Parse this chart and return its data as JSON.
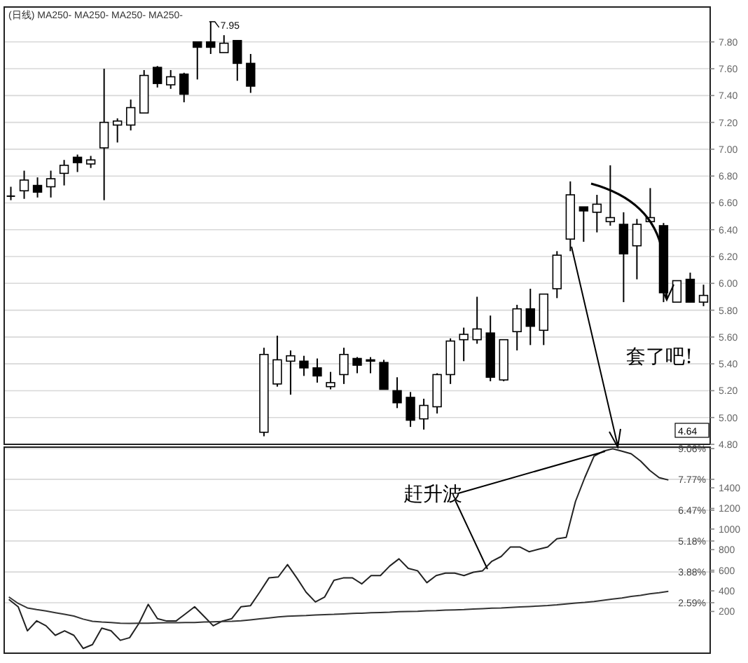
{
  "chart_data": [
    {
      "type": "candlestick",
      "title": "(日线) MA250- MA250- MA250- MA250-",
      "categories": [
        null,
        null,
        null,
        null,
        null,
        null,
        null,
        null,
        null,
        null,
        null,
        null,
        null,
        null,
        null,
        null,
        null,
        null,
        null,
        null,
        null,
        null,
        null,
        null,
        null,
        null,
        null,
        null,
        null,
        null,
        null,
        null,
        null,
        null,
        null,
        null,
        null,
        null,
        null,
        null,
        null,
        null,
        null,
        null,
        null,
        null,
        null,
        null,
        null,
        null,
        null,
        null,
        null
      ],
      "ohlc": [
        [
          6.65,
          6.72,
          6.62,
          6.65
        ],
        [
          6.69,
          6.84,
          6.63,
          6.77
        ],
        [
          6.73,
          6.79,
          6.64,
          6.68
        ],
        [
          6.72,
          6.84,
          6.64,
          6.78
        ],
        [
          6.82,
          6.92,
          6.73,
          6.88
        ],
        [
          6.94,
          6.96,
          6.83,
          6.9
        ],
        [
          6.89,
          6.95,
          6.86,
          6.92
        ],
        [
          7.01,
          7.6,
          6.62,
          7.2
        ],
        [
          7.18,
          7.23,
          7.05,
          7.21
        ],
        [
          7.18,
          7.37,
          7.14,
          7.31
        ],
        [
          7.27,
          7.59,
          7.27,
          7.55
        ],
        [
          7.61,
          7.62,
          7.46,
          7.49
        ],
        [
          7.48,
          7.59,
          7.45,
          7.54
        ],
        [
          7.56,
          7.57,
          7.35,
          7.41
        ],
        [
          7.8,
          7.8,
          7.52,
          7.76
        ],
        [
          7.8,
          7.95,
          7.71,
          7.76
        ],
        [
          7.72,
          7.85,
          7.72,
          7.79
        ],
        [
          7.81,
          7.81,
          7.51,
          7.64
        ],
        [
          7.64,
          7.71,
          7.42,
          7.47
        ],
        [
          4.89,
          5.52,
          4.86,
          5.47
        ],
        [
          5.25,
          5.61,
          5.23,
          5.43
        ],
        [
          5.42,
          5.5,
          5.17,
          5.46
        ],
        [
          5.42,
          5.46,
          5.31,
          5.37
        ],
        [
          5.37,
          5.44,
          5.26,
          5.31
        ],
        [
          5.23,
          5.34,
          5.21,
          5.26
        ],
        [
          5.32,
          5.52,
          5.25,
          5.47
        ],
        [
          5.44,
          5.45,
          5.33,
          5.39
        ],
        [
          5.43,
          5.45,
          5.33,
          5.42
        ],
        [
          5.41,
          5.43,
          5.21,
          5.21
        ],
        [
          5.2,
          5.3,
          5.07,
          5.11
        ],
        [
          5.15,
          5.19,
          4.93,
          4.98
        ],
        [
          4.99,
          5.14,
          4.91,
          5.09
        ],
        [
          5.08,
          5.33,
          5.03,
          5.32
        ],
        [
          5.32,
          5.59,
          5.25,
          5.57
        ],
        [
          5.58,
          5.67,
          5.42,
          5.62
        ],
        [
          5.58,
          5.9,
          5.55,
          5.66
        ],
        [
          5.63,
          5.76,
          5.27,
          5.3
        ],
        [
          5.28,
          5.58,
          5.27,
          5.58
        ],
        [
          5.64,
          5.84,
          5.5,
          5.81
        ],
        [
          5.81,
          5.96,
          5.54,
          5.68
        ],
        [
          5.65,
          5.92,
          5.54,
          5.92
        ],
        [
          5.96,
          6.24,
          5.89,
          6.21
        ],
        [
          6.33,
          6.76,
          6.24,
          6.66
        ],
        [
          6.57,
          6.57,
          6.31,
          6.54
        ],
        [
          6.53,
          6.66,
          6.38,
          6.59
        ],
        [
          6.46,
          6.88,
          6.43,
          6.49
        ],
        [
          6.44,
          6.53,
          5.86,
          6.22
        ],
        [
          6.28,
          6.48,
          6.03,
          6.44
        ],
        [
          6.46,
          6.71,
          6.46,
          6.49
        ],
        [
          6.43,
          6.45,
          5.86,
          5.93
        ],
        [
          5.86,
          6.02,
          5.86,
          6.02
        ],
        [
          6.03,
          6.08,
          5.86,
          5.86
        ],
        [
          5.86,
          5.99,
          5.83,
          5.91
        ]
      ],
      "ylim": [
        4.8,
        8.06
      ],
      "yticks": [
        {
          "value": 4.8,
          "label": "4.80"
        },
        {
          "value": 5.0,
          "label": "5.00"
        },
        {
          "value": 5.2,
          "label": "5.20"
        },
        {
          "value": 5.4,
          "label": "5.40"
        },
        {
          "value": 5.6,
          "label": "5.60"
        },
        {
          "value": 5.8,
          "label": "5.80"
        },
        {
          "value": 6.0,
          "label": "6.00"
        },
        {
          "value": 6.2,
          "label": "6.20"
        },
        {
          "value": 6.4,
          "label": "6.40"
        },
        {
          "value": 6.6,
          "label": "6.60"
        },
        {
          "value": 6.8,
          "label": "6.80"
        },
        {
          "value": 7.0,
          "label": "7.00"
        },
        {
          "value": 7.2,
          "label": "7.20"
        },
        {
          "value": 7.4,
          "label": "7.40"
        },
        {
          "value": 7.6,
          "label": "7.60"
        },
        {
          "value": 7.8,
          "label": "7.80"
        }
      ],
      "grid": "y",
      "annotations": [
        "7.95",
        "套了吧!",
        "4.64"
      ]
    },
    {
      "type": "line",
      "categories": [
        null,
        null,
        null,
        null,
        null,
        null,
        null,
        null,
        null,
        null,
        null,
        null,
        null,
        null,
        null,
        null,
        null,
        null,
        null,
        null,
        null,
        null,
        null,
        null,
        null,
        null,
        null,
        null,
        null,
        null,
        null,
        null,
        null,
        null,
        null,
        null,
        null,
        null,
        null,
        null,
        null,
        null,
        null,
        null,
        null,
        null,
        null,
        null,
        null,
        null,
        null,
        null,
        null,
        null,
        null,
        null,
        null,
        null,
        null,
        null,
        null,
        null,
        null,
        null,
        null,
        null,
        null,
        null,
        null,
        null,
        null,
        null,
        null,
        null,
        null,
        null
      ],
      "series": [
        {
          "color": "#222222",
          "values": [
            2.73,
            2.42,
            1.41,
            1.83,
            1.62,
            1.22,
            1.41,
            1.22,
            0.67,
            0.83,
            1.52,
            1.41,
            1.01,
            1.12,
            1.72,
            2.52,
            1.92,
            1.82,
            1.82,
            2.12,
            2.42,
            2.02,
            1.62,
            1.82,
            1.92,
            2.42,
            2.46,
            3.03,
            3.63,
            3.67,
            4.19,
            3.63,
            3.03,
            2.62,
            2.83,
            3.53,
            3.63,
            3.63,
            3.38,
            3.73,
            3.73,
            4.13,
            4.43,
            4.03,
            3.93,
            3.43,
            3.73,
            3.83,
            3.83,
            3.73,
            3.87,
            3.93,
            4.33,
            4.53,
            4.93,
            4.93,
            4.73,
            4.83,
            4.93,
            5.27,
            5.33,
            6.84,
            7.84,
            8.74,
            8.95,
            9.05,
            8.95,
            8.84,
            8.54,
            8.14,
            7.84,
            7.74,
            null,
            null,
            null,
            null
          ]
        },
        {
          "color": "#333333",
          "values": [
            2.83,
            2.56,
            2.37,
            2.3,
            2.24,
            2.17,
            2.1,
            2.03,
            1.9,
            1.81,
            1.78,
            1.76,
            1.73,
            1.72,
            1.73,
            1.73,
            1.74,
            1.75,
            1.75,
            1.76,
            1.76,
            1.78,
            1.79,
            1.8,
            1.81,
            1.83,
            1.87,
            1.91,
            1.95,
            1.99,
            2.02,
            2.04,
            2.05,
            2.07,
            2.09,
            2.1,
            2.12,
            2.14,
            2.15,
            2.17,
            2.18,
            2.19,
            2.21,
            2.22,
            2.23,
            2.25,
            2.26,
            2.28,
            2.29,
            2.3,
            2.32,
            2.34,
            2.36,
            2.37,
            2.39,
            2.41,
            2.43,
            2.45,
            2.47,
            2.5,
            2.54,
            2.57,
            2.6,
            2.64,
            2.69,
            2.74,
            2.79,
            2.85,
            2.9,
            2.96,
            3.01,
            3.07,
            null,
            null,
            null,
            null
          ]
        }
      ],
      "ylim": [
        0.47,
        9.12
      ],
      "yticks": [
        {
          "value": 2.59,
          "label": "2.59%"
        },
        {
          "value": 3.88,
          "label": "3.88%"
        },
        {
          "value": 5.18,
          "label": "5.18%"
        },
        {
          "value": 6.47,
          "label": "6.47%"
        },
        {
          "value": 7.77,
          "label": "7.77%"
        },
        {
          "value": 9.06,
          "label": "9.06%"
        }
      ],
      "y2lim": [
        -205,
        1795
      ],
      "y2ticks": [
        200,
        400,
        600,
        800,
        1000,
        1200,
        1400
      ],
      "grid": "y",
      "annotations": [
        "赶升波"
      ]
    }
  ]
}
